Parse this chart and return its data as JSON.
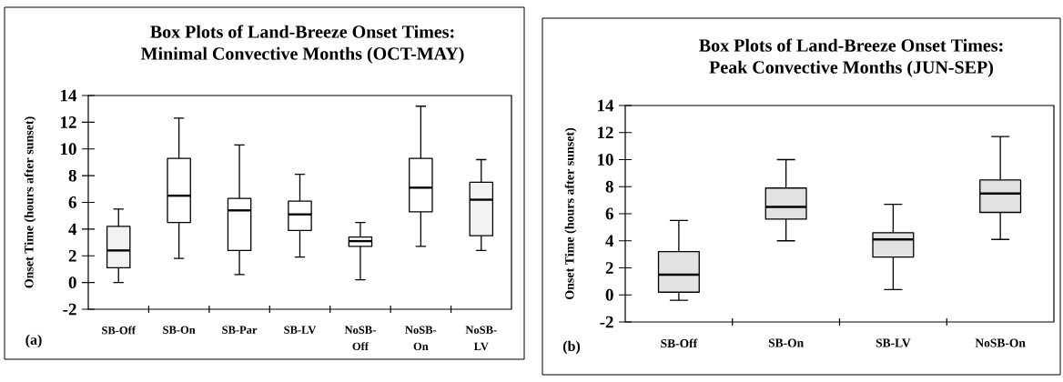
{
  "chart_data": [
    {
      "type": "box",
      "title": "Box Plots of Land-Breeze Onset Times:",
      "subtitle": "Minimal Convective Months (OCT-MAY)",
      "ylabel": "Onset Time (hours after sunset)",
      "annotations": [
        "(a)"
      ],
      "categories": [
        "SB-Off",
        "SB-On",
        "SB-Par",
        "SB-LV",
        "NoSB-Off",
        "NoSB-On",
        "NoSB-LV"
      ],
      "boxes": [
        {
          "low": 0.0,
          "q1": 1.1,
          "median": 2.4,
          "q3": 4.2,
          "high": 5.5
        },
        {
          "low": 1.8,
          "q1": 4.5,
          "median": 6.5,
          "q3": 9.3,
          "high": 12.3
        },
        {
          "low": 0.6,
          "q1": 2.4,
          "median": 5.4,
          "q3": 6.3,
          "high": 10.3
        },
        {
          "low": 1.9,
          "q1": 3.9,
          "median": 5.1,
          "q3": 6.1,
          "high": 8.1
        },
        {
          "low": 0.2,
          "q1": 2.7,
          "median": 3.1,
          "q3": 3.4,
          "high": 4.5
        },
        {
          "low": 2.7,
          "q1": 5.3,
          "median": 7.1,
          "q3": 9.3,
          "high": 13.2
        },
        {
          "low": 2.4,
          "q1": 3.5,
          "median": 6.2,
          "q3": 7.5,
          "high": 9.2
        }
      ],
      "colors": [
        "#f2f2f2",
        "#ffffff",
        "#ffffff",
        "#ffffff",
        "#ffffff",
        "#ffffff",
        "#f2f2f2"
      ],
      "ylim": [
        -2,
        14
      ],
      "yticks": [
        -2,
        0,
        2,
        4,
        6,
        8,
        10,
        12,
        14
      ]
    },
    {
      "type": "box",
      "title": "Box Plots of Land-Breeze Onset Times:",
      "subtitle": "Peak Convective Months (JUN-SEP)",
      "ylabel": "Onset Time (hours after sunset)",
      "annotations": [
        "(b)"
      ],
      "categories": [
        "SB-Off",
        "SB-On",
        "SB-LV",
        "NoSB-On"
      ],
      "boxes": [
        {
          "low": -0.4,
          "q1": 0.2,
          "median": 1.5,
          "q3": 3.2,
          "high": 5.5
        },
        {
          "low": 4.0,
          "q1": 5.6,
          "median": 6.5,
          "q3": 7.9,
          "high": 10.0
        },
        {
          "low": 0.4,
          "q1": 2.8,
          "median": 4.1,
          "q3": 4.6,
          "high": 6.7
        },
        {
          "low": 4.1,
          "q1": 6.1,
          "median": 7.5,
          "q3": 8.5,
          "high": 11.7
        }
      ],
      "colors": [
        "#e2e2e2",
        "#e2e2e2",
        "#e2e2e2",
        "#e2e2e2"
      ],
      "ylim": [
        -2,
        14
      ],
      "yticks": [
        -2,
        0,
        2,
        4,
        6,
        8,
        10,
        12,
        14
      ]
    }
  ]
}
